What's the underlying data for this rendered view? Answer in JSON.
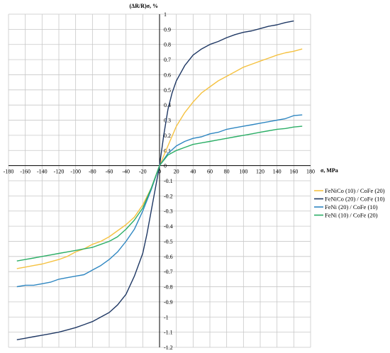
{
  "chart_data": {
    "type": "line",
    "title": "",
    "xlabel": "σ, MPa",
    "ylabel": "(ΔR/R)σ, %",
    "xlim": [
      -180,
      180
    ],
    "ylim": [
      -1.2,
      1.0
    ],
    "x_ticks": [
      "-180",
      "-160",
      "-140",
      "-120",
      "-100",
      "-80",
      "-60",
      "-40",
      "-20",
      "0",
      "20",
      "40",
      "60",
      "80",
      "100",
      "120",
      "140",
      "160",
      "180"
    ],
    "y_ticks": [
      "1",
      "0.9",
      "0.8",
      "0.7",
      "0.6",
      "0.5",
      "0.4",
      "0.3",
      "0.2",
      "0.1",
      "0",
      "-0.1",
      "-0.2",
      "-0.3",
      "-0.4",
      "-0.5",
      "-0.6",
      "-0.7",
      "-0.8",
      "-0.9",
      "-1",
      "-1.1",
      "-1.2"
    ],
    "grid": true,
    "legend_position": "right",
    "series": [
      {
        "name": "FeNiCo (10) / CoFe (20)",
        "color": "#F5C242",
        "points": [
          [
            -170,
            -0.68
          ],
          [
            -160,
            -0.67
          ],
          [
            -150,
            -0.66
          ],
          [
            -140,
            -0.65
          ],
          [
            -130,
            -0.635
          ],
          [
            -120,
            -0.62
          ],
          [
            -110,
            -0.6
          ],
          [
            -100,
            -0.57
          ],
          [
            -90,
            -0.55
          ],
          [
            -80,
            -0.52
          ],
          [
            -70,
            -0.5
          ],
          [
            -60,
            -0.47
          ],
          [
            -50,
            -0.43
          ],
          [
            -40,
            -0.39
          ],
          [
            -30,
            -0.34
          ],
          [
            -20,
            -0.26
          ],
          [
            -10,
            -0.15
          ],
          [
            0,
            0
          ],
          [
            10,
            0.13
          ],
          [
            20,
            0.26
          ],
          [
            30,
            0.35
          ],
          [
            40,
            0.42
          ],
          [
            50,
            0.48
          ],
          [
            60,
            0.52
          ],
          [
            70,
            0.56
          ],
          [
            80,
            0.59
          ],
          [
            90,
            0.62
          ],
          [
            100,
            0.65
          ],
          [
            110,
            0.67
          ],
          [
            120,
            0.69
          ],
          [
            130,
            0.71
          ],
          [
            140,
            0.73
          ],
          [
            150,
            0.745
          ],
          [
            160,
            0.755
          ],
          [
            170,
            0.77
          ]
        ]
      },
      {
        "name": "FeNiCo (20) / CoFe (10)",
        "color": "#1F3864",
        "points": [
          [
            -170,
            -1.15
          ],
          [
            -160,
            -1.14
          ],
          [
            -150,
            -1.13
          ],
          [
            -140,
            -1.12
          ],
          [
            -130,
            -1.11
          ],
          [
            -120,
            -1.1
          ],
          [
            -110,
            -1.085
          ],
          [
            -100,
            -1.07
          ],
          [
            -90,
            -1.05
          ],
          [
            -80,
            -1.03
          ],
          [
            -70,
            -1.0
          ],
          [
            -60,
            -0.97
          ],
          [
            -50,
            -0.92
          ],
          [
            -40,
            -0.85
          ],
          [
            -30,
            -0.73
          ],
          [
            -20,
            -0.58
          ],
          [
            -15,
            -0.45
          ],
          [
            -10,
            -0.3
          ],
          [
            -5,
            -0.15
          ],
          [
            0,
            0
          ],
          [
            5,
            0.2
          ],
          [
            10,
            0.37
          ],
          [
            15,
            0.48
          ],
          [
            20,
            0.56
          ],
          [
            30,
            0.66
          ],
          [
            40,
            0.73
          ],
          [
            50,
            0.77
          ],
          [
            60,
            0.8
          ],
          [
            70,
            0.82
          ],
          [
            80,
            0.845
          ],
          [
            90,
            0.865
          ],
          [
            100,
            0.88
          ],
          [
            110,
            0.89
          ],
          [
            120,
            0.905
          ],
          [
            130,
            0.92
          ],
          [
            140,
            0.93
          ],
          [
            150,
            0.945
          ],
          [
            160,
            0.955
          ]
        ]
      },
      {
        "name": "FeNi (20) / CoFe (10)",
        "color": "#2E86C1",
        "points": [
          [
            -170,
            -0.8
          ],
          [
            -160,
            -0.79
          ],
          [
            -150,
            -0.79
          ],
          [
            -140,
            -0.78
          ],
          [
            -130,
            -0.77
          ],
          [
            -120,
            -0.75
          ],
          [
            -110,
            -0.74
          ],
          [
            -100,
            -0.73
          ],
          [
            -90,
            -0.72
          ],
          [
            -80,
            -0.69
          ],
          [
            -70,
            -0.66
          ],
          [
            -60,
            -0.62
          ],
          [
            -50,
            -0.57
          ],
          [
            -40,
            -0.5
          ],
          [
            -30,
            -0.42
          ],
          [
            -20,
            -0.3
          ],
          [
            -10,
            -0.16
          ],
          [
            0,
            0
          ],
          [
            10,
            0.08
          ],
          [
            20,
            0.13
          ],
          [
            30,
            0.16
          ],
          [
            40,
            0.18
          ],
          [
            50,
            0.19
          ],
          [
            60,
            0.21
          ],
          [
            70,
            0.22
          ],
          [
            80,
            0.24
          ],
          [
            90,
            0.25
          ],
          [
            100,
            0.26
          ],
          [
            110,
            0.27
          ],
          [
            120,
            0.28
          ],
          [
            130,
            0.29
          ],
          [
            140,
            0.3
          ],
          [
            150,
            0.31
          ],
          [
            160,
            0.33
          ],
          [
            170,
            0.335
          ]
        ]
      },
      {
        "name": "FeNi (10) / CoFe (20)",
        "color": "#2BAE66",
        "points": [
          [
            -170,
            -0.63
          ],
          [
            -160,
            -0.62
          ],
          [
            -150,
            -0.61
          ],
          [
            -140,
            -0.6
          ],
          [
            -130,
            -0.59
          ],
          [
            -120,
            -0.58
          ],
          [
            -110,
            -0.57
          ],
          [
            -100,
            -0.56
          ],
          [
            -90,
            -0.55
          ],
          [
            -80,
            -0.54
          ],
          [
            -70,
            -0.52
          ],
          [
            -60,
            -0.5
          ],
          [
            -50,
            -0.47
          ],
          [
            -40,
            -0.42
          ],
          [
            -30,
            -0.36
          ],
          [
            -20,
            -0.28
          ],
          [
            -10,
            -0.15
          ],
          [
            0,
            0
          ],
          [
            10,
            0.07
          ],
          [
            20,
            0.1
          ],
          [
            30,
            0.12
          ],
          [
            40,
            0.14
          ],
          [
            50,
            0.15
          ],
          [
            60,
            0.16
          ],
          [
            70,
            0.17
          ],
          [
            80,
            0.18
          ],
          [
            90,
            0.19
          ],
          [
            100,
            0.2
          ],
          [
            110,
            0.21
          ],
          [
            120,
            0.22
          ],
          [
            130,
            0.23
          ],
          [
            140,
            0.24
          ],
          [
            150,
            0.245
          ],
          [
            160,
            0.255
          ],
          [
            170,
            0.26
          ]
        ]
      }
    ]
  }
}
